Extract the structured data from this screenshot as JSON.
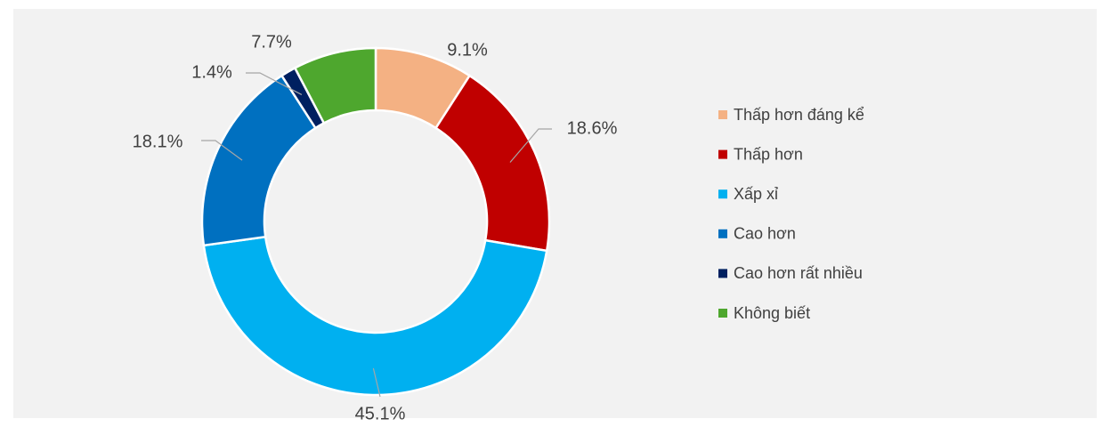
{
  "chart_data": {
    "type": "donut",
    "categories": [
      "Thấp hơn đáng kể",
      "Thấp hơn",
      "Xấp xỉ",
      "Cao hơn",
      "Cao hơn rất nhiều",
      "Không biết"
    ],
    "values": [
      9.1,
      18.6,
      45.1,
      18.1,
      1.4,
      7.7
    ],
    "value_labels": [
      "9.1%",
      "18.6%",
      "45.1%",
      "18.1%",
      "1.4%",
      "7.7%"
    ],
    "colors": [
      "#f4b183",
      "#c00000",
      "#00b0f0",
      "#0070c0",
      "#002060",
      "#4ea72e"
    ],
    "legend": "right"
  }
}
